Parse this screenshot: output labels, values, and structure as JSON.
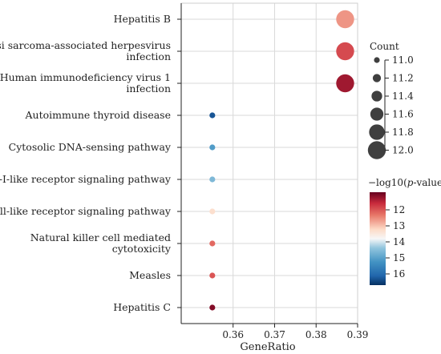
{
  "chart_data": {
    "type": "scatter",
    "title": "",
    "xlabel": "GeneRatio",
    "ylabel": "",
    "xlim": [
      0.3475,
      0.39
    ],
    "x_ticks": [
      "0.36",
      "0.37",
      "0.38",
      "0.39"
    ],
    "grid": true,
    "categories": [
      "Hepatitis B",
      "Kaposi sarcoma-associated herpesvirus infection",
      "Human immunodeficiency virus 1 infection",
      "Autoimmune thyroid disease",
      "Cytosolic DNA-sensing pathway",
      "RIG-I-like receptor signaling pathway",
      "Toll-like receptor signaling pathway",
      "Natural killer cell mediated cytotoxicity",
      "Measles",
      "Hepatitis C"
    ],
    "category_labels": [
      [
        "Hepatitis B"
      ],
      [
        "Kaposi sarcoma-associated herpesvirus",
        "infection"
      ],
      [
        "Human immunodeficiency virus 1",
        "infection"
      ],
      [
        "Autoimmune thyroid disease"
      ],
      [
        "Cytosolic DNA-sensing pathway"
      ],
      [
        "RIG-I-like receptor signaling pathway"
      ],
      [
        "Toll-like receptor signaling pathway"
      ],
      [
        "Natural killer cell mediated",
        "cytotoxicity"
      ],
      [
        "Measles"
      ],
      [
        "Hepatitis C"
      ]
    ],
    "x": [
      0.387,
      0.387,
      0.387,
      0.355,
      0.355,
      0.355,
      0.355,
      0.355,
      0.355,
      0.355
    ],
    "count": [
      12,
      12,
      12,
      11,
      11,
      11,
      11,
      11,
      11,
      11
    ],
    "neglog10p": [
      12.6,
      11.9,
      11.3,
      16.3,
      15.1,
      14.6,
      13.3,
      12.2,
      12.0,
      11.1
    ],
    "size_legend": {
      "title": "Count",
      "values": [
        11.0,
        11.2,
        11.4,
        11.6,
        11.8,
        12.0
      ],
      "labels": [
        "11.0",
        "11.2",
        "11.4",
        "11.6",
        "11.8",
        "12.0"
      ]
    },
    "color_legend": {
      "title_prefix": "−log10(",
      "title_italic": "p",
      "title_suffix": "-value)",
      "ticks": [
        12,
        13,
        14,
        15,
        16
      ],
      "tick_labels": [
        "12",
        "13",
        "14",
        "15",
        "16"
      ],
      "range": [
        10.9,
        16.7
      ],
      "scale": "RdBu, high value = blue, low value = dark red"
    },
    "colors": {
      "dark_red": "#67001f",
      "red": "#d6404e",
      "light_red": "#f6b495",
      "white": "#f7f7f7",
      "light_blue": "#8fc3dd",
      "blue": "#2f79b5",
      "dark_blue": "#053061",
      "grid": "#d9d9d9",
      "axis": "#222222"
    }
  }
}
